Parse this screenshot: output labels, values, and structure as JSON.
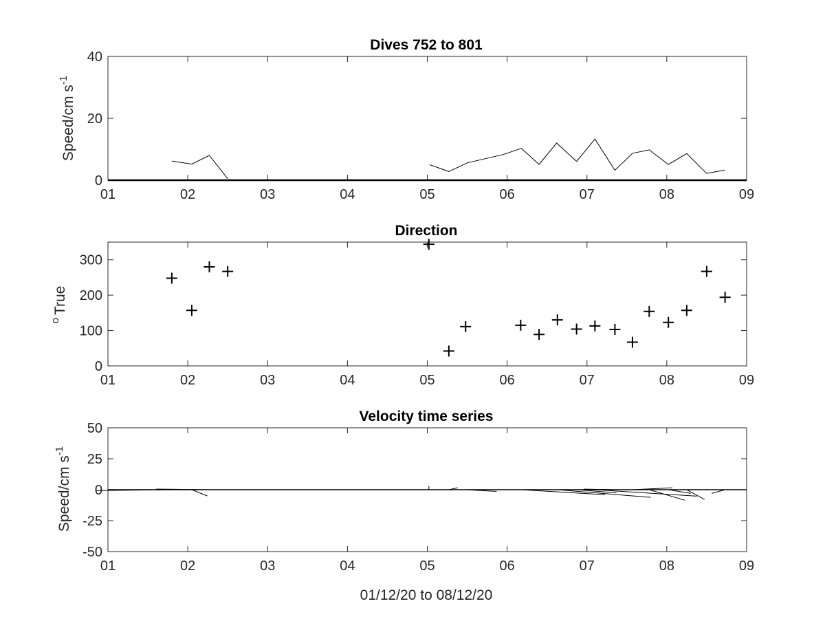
{
  "chart_data": [
    {
      "type": "line",
      "title": "Dives 752 to 801",
      "ylabel": "Speed/cm s",
      "ylabel_superscript": "-1",
      "xlim": [
        1,
        9
      ],
      "ylim": [
        0,
        40
      ],
      "xticks": [
        "01",
        "02",
        "03",
        "04",
        "05",
        "06",
        "07",
        "08",
        "09"
      ],
      "yticks": [
        "0",
        "20",
        "40"
      ],
      "series": [
        {
          "x": [
            1.8,
            2.05,
            2.27,
            2.5,
            null,
            5.03,
            5.27,
            5.5,
            5.95,
            6.18,
            6.4,
            6.62,
            6.87,
            7.1,
            7.35,
            7.57,
            7.78,
            8.02,
            8.25,
            8.5,
            8.73
          ],
          "values": [
            6.2,
            5.2,
            8,
            0.5,
            null,
            5,
            2.8,
            5.6,
            8.3,
            10.3,
            5.1,
            12,
            6.1,
            13.3,
            3.2,
            8.7,
            9.8,
            5.1,
            8.6,
            2.2,
            3.3
          ]
        }
      ]
    },
    {
      "type": "scatter",
      "title": "Direction",
      "ylabel": "True",
      "ylabel_prefix": "o",
      "xlim": [
        1,
        9
      ],
      "ylim": [
        0,
        350
      ],
      "xticks": [
        "01",
        "02",
        "03",
        "04",
        "05",
        "06",
        "07",
        "08",
        "09"
      ],
      "yticks": [
        "0",
        "100",
        "200",
        "300"
      ],
      "series": [
        {
          "x": [
            1.8,
            2.05,
            2.27,
            2.5,
            5.02,
            5.27,
            5.48,
            6.17,
            6.4,
            6.63,
            6.87,
            7.1,
            7.35,
            7.57,
            7.78,
            8.02,
            8.25,
            8.5,
            8.73
          ],
          "values": [
            248,
            157,
            280,
            267,
            344,
            42,
            111,
            115,
            89,
            130,
            104,
            113,
            103,
            67,
            154,
            123,
            157,
            267,
            194
          ]
        }
      ]
    },
    {
      "type": "line",
      "subtype": "stick-plot",
      "title": "Velocity time series",
      "ylabel": "Speed/cm s",
      "ylabel_superscript": "-1",
      "xlabel": "01/12/20 to 08/12/20",
      "xlim": [
        1,
        9
      ],
      "ylim": [
        -50,
        50
      ],
      "xticks": [
        "01",
        "02",
        "03",
        "04",
        "05",
        "06",
        "07",
        "08",
        "09"
      ],
      "yticks": [
        "-50",
        "-25",
        "0",
        "25",
        "50"
      ],
      "sticks": [
        {
          "x": 1.8,
          "u": -1.7,
          "v": -0.7
        },
        {
          "x": 2.05,
          "u": 0.35,
          "v": -5
        },
        {
          "x": 2.27,
          "u": -1.2,
          "v": 0.5
        },
        {
          "x": 2.5,
          "u": 0,
          "v": 0
        },
        {
          "x": 5.02,
          "u": 0,
          "v": 3
        },
        {
          "x": 5.27,
          "u": 0.2,
          "v": 1.5
        },
        {
          "x": 5.48,
          "u": 0.7,
          "v": -1.4
        },
        {
          "x": 6.17,
          "u": 1.9,
          "v": -4
        },
        {
          "x": 6.4,
          "u": 0,
          "v": 0
        },
        {
          "x": 6.63,
          "u": 2.1,
          "v": -6.2
        },
        {
          "x": 6.87,
          "u": 0.9,
          "v": -2.5
        },
        {
          "x": 7.1,
          "u": 2.3,
          "v": -5.2
        },
        {
          "x": 7.35,
          "u": -0.7,
          "v": 0.5
        },
        {
          "x": 7.57,
          "u": 0.9,
          "v": 1.5
        },
        {
          "x": 7.78,
          "u": 0.8,
          "v": -8.5
        },
        {
          "x": 8.02,
          "u": 0.5,
          "v": -3
        },
        {
          "x": 8.25,
          "u": 0.4,
          "v": -7.9
        },
        {
          "x": 8.5,
          "u": 0,
          "v": 0
        },
        {
          "x": 8.73,
          "u": -0.3,
          "v": -3
        }
      ]
    }
  ]
}
